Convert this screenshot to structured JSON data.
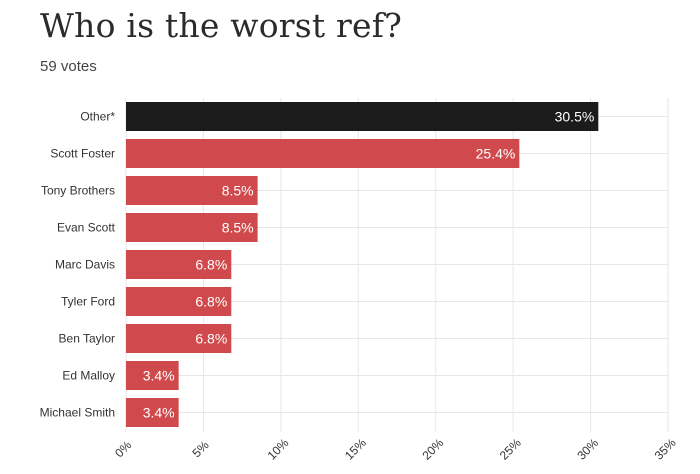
{
  "title": "Who is the worst ref?",
  "subtitle": "59 votes",
  "colors": {
    "highlight": "#1b1b1b",
    "bar": "#d04a4d",
    "grid": "#e6e6e6",
    "text": "#333333",
    "label_on_bar": "#ffffff"
  },
  "chart_data": {
    "type": "bar",
    "orientation": "horizontal",
    "title": "Who is the worst ref?",
    "subtitle": "59 votes",
    "categories": [
      "Other*",
      "Scott Foster",
      "Tony Brothers",
      "Evan Scott",
      "Marc Davis",
      "Tyler Ford",
      "Ben Taylor",
      "Ed Malloy",
      "Michael Smith"
    ],
    "values": [
      30.5,
      25.4,
      8.5,
      8.5,
      6.8,
      6.8,
      6.8,
      3.4,
      3.4
    ],
    "value_labels": [
      "30.5%",
      "25.4%",
      "8.5%",
      "8.5%",
      "6.8%",
      "6.8%",
      "6.8%",
      "3.4%",
      "3.4%"
    ],
    "highlight_index": 0,
    "xlim": [
      0,
      35
    ],
    "xticks": [
      0,
      5,
      10,
      15,
      20,
      25,
      30,
      35
    ],
    "xtick_labels": [
      "0%",
      "5%",
      "10%",
      "15%",
      "20%",
      "25%",
      "30%",
      "35%"
    ],
    "grid": true,
    "legend": "none"
  }
}
